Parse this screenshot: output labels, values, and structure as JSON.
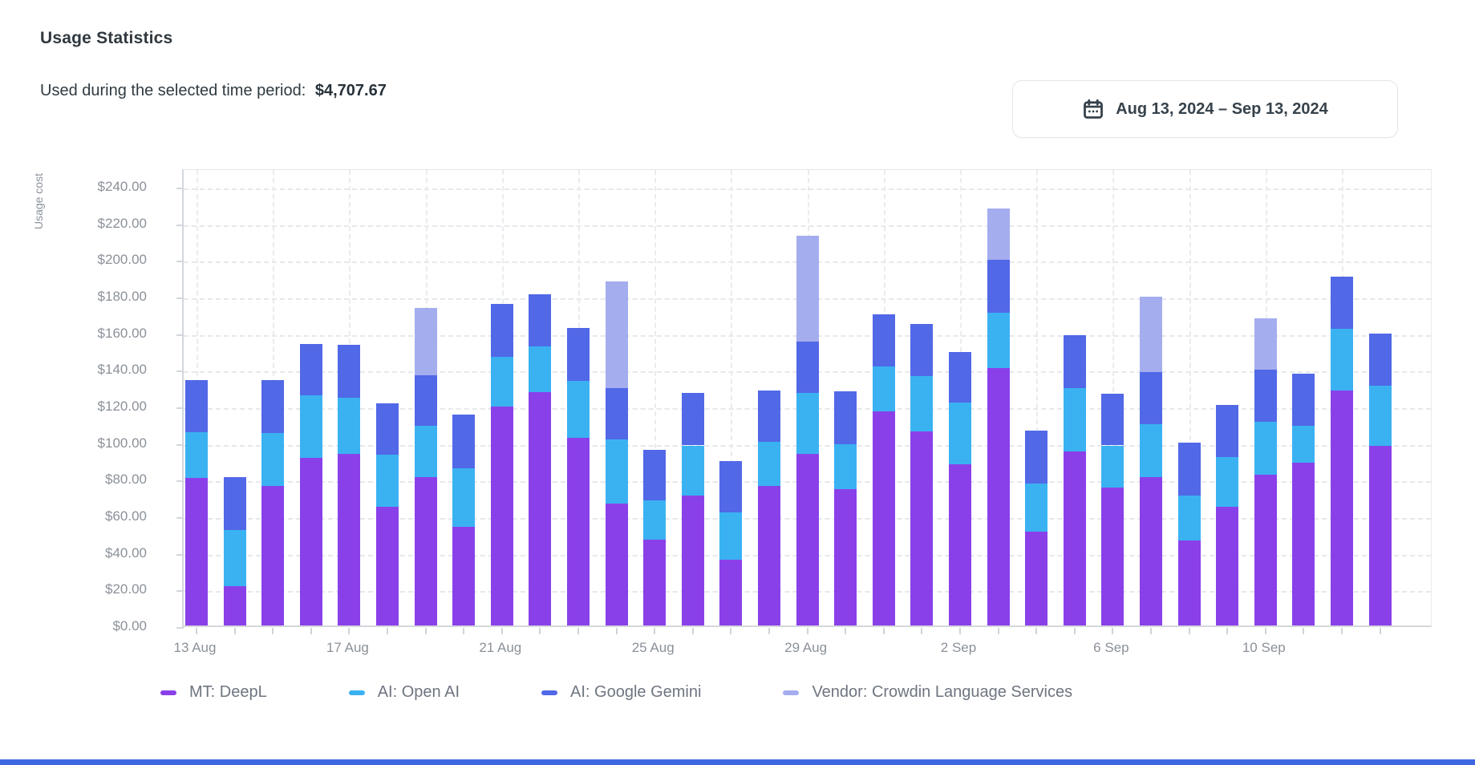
{
  "header": {
    "title": "Usage Statistics",
    "subtitle_label": "Used during the selected time period:",
    "subtitle_value": "$4,707.67"
  },
  "date_picker": {
    "label": "Aug 13, 2024 – Sep 13, 2024",
    "icon": "calendar-icon"
  },
  "chart_data": {
    "type": "bar",
    "stacked": true,
    "ylabel": "Usage cost",
    "ylim": [
      0,
      250
    ],
    "ytick_step": 20,
    "yticks": [
      "$0.00",
      "$20.00",
      "$40.00",
      "$60.00",
      "$80.00",
      "$100.00",
      "$120.00",
      "$140.00",
      "$160.00",
      "$180.00",
      "$200.00",
      "$220.00",
      "$240.00"
    ],
    "categories": [
      "13 Aug",
      "14 Aug",
      "15 Aug",
      "16 Aug",
      "17 Aug",
      "18 Aug",
      "19 Aug",
      "20 Aug",
      "21 Aug",
      "22 Aug",
      "23 Aug",
      "24 Aug",
      "25 Aug",
      "26 Aug",
      "27 Aug",
      "28 Aug",
      "29 Aug",
      "30 Aug",
      "31 Aug",
      "1 Sep",
      "2 Sep",
      "3 Sep",
      "4 Sep",
      "5 Sep",
      "6 Sep",
      "7 Sep",
      "8 Sep",
      "9 Sep",
      "10 Sep",
      "11 Sep",
      "12 Sep",
      "13 Sep"
    ],
    "x_axis_labels": [
      "13 Aug",
      "17 Aug",
      "21 Aug",
      "25 Aug",
      "29 Aug",
      "2 Sep",
      "6 Sep",
      "10 Sep"
    ],
    "x_axis_label_every_n_bars": 4,
    "grid": "dashed",
    "legend_position": "bottom",
    "series": [
      {
        "name": "MT: DeepL",
        "color": "#8a40e9",
        "values": [
          80.7,
          21.6,
          76.4,
          91.5,
          93.6,
          64.8,
          81.1,
          53.7,
          119.4,
          127.4,
          102.3,
          66.7,
          46.7,
          71.1,
          36.1,
          76.4,
          93.5,
          74.5,
          116.9,
          105.9,
          87.9,
          140.6,
          51.1,
          95.2,
          75.5,
          81.1,
          46.3,
          65.0,
          82.5,
          89.1,
          128.1,
          97.9
        ]
      },
      {
        "name": "AI: Open AI",
        "color": "#3ab2f2",
        "values": [
          25.0,
          30.7,
          28.9,
          34.2,
          30.8,
          28.5,
          27.8,
          32.2,
          27.4,
          24.9,
          31.4,
          34.8,
          21.6,
          27.2,
          25.5,
          24.0,
          33.6,
          24.4,
          24.4,
          30.3,
          33.7,
          30.3,
          26.6,
          34.4,
          22.8,
          28.9,
          24.8,
          27.0,
          28.6,
          20.0,
          33.7,
          33.1
        ]
      },
      {
        "name": "AI: Google Gemini",
        "color": "#5168e7",
        "values": [
          28.5,
          28.5,
          28.6,
          28.2,
          28.8,
          28.2,
          27.7,
          29.1,
          28.9,
          28.6,
          28.8,
          28.1,
          27.8,
          28.5,
          28.2,
          27.9,
          28.1,
          29.0,
          28.7,
          28.5,
          27.7,
          28.9,
          28.7,
          29.0,
          28.4,
          28.4,
          28.7,
          28.5,
          28.5,
          28.3,
          28.5,
          28.3
        ]
      },
      {
        "name": "Vendor: Crowdin Language Services",
        "color": "#a4adee",
        "values": [
          0,
          0,
          0,
          0,
          0,
          0,
          36.9,
          0,
          0,
          0,
          0,
          58.2,
          0,
          0,
          0,
          0,
          57.7,
          0,
          0,
          0,
          0,
          27.7,
          0,
          0,
          0,
          41.3,
          0,
          0,
          28.0,
          0,
          0,
          0
        ]
      }
    ],
    "totals_note": "sum of all stacks ≈ 4707.67"
  }
}
